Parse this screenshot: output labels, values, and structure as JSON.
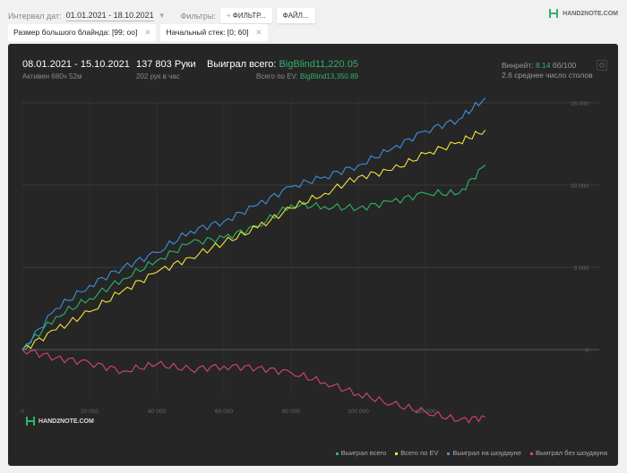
{
  "toolbar": {
    "interval_label": "Интервал дат:",
    "interval_value": "01.01.2021 - 18.10.2021",
    "filters_label": "Фильтры:",
    "filter_button": "ФИЛЬТР...",
    "file_button": "ФАЙЛ..."
  },
  "chips": [
    {
      "label": "Размер большого блайнда: [99; oo]"
    },
    {
      "label": "Начальный стек: [0; 60]"
    }
  ],
  "brand": {
    "text": "HAND2NOTE.COM"
  },
  "stats": {
    "period": "08.01.2021 - 15.10.2021",
    "active": "Активен 680ч 52м",
    "hands": "137 803 Руки",
    "hands_per_hour": "202 рук в час",
    "won_label": "Выиграл всего:",
    "won_value": "BigBlind11,220.05",
    "ev_label": "Всего по EV:",
    "ev_value": "BigBlind13,350.89",
    "winrate_label": "Винрейт:",
    "winrate_value": "8.14",
    "winrate_unit": "бб/100",
    "tables": "2.6 среднее число столов"
  },
  "colors": {
    "green": "#2fb36a",
    "yellow": "#f2e33a",
    "blue": "#3d8fe0",
    "pink": "#d9456f"
  },
  "chart_data": {
    "type": "line",
    "xlabel": "",
    "ylabel": "",
    "xlim": [
      0,
      137803
    ],
    "ylim": [
      -5000,
      15500
    ],
    "x_ticks": [
      "0",
      "20 000",
      "40 000",
      "60 000",
      "80 000",
      "100 000",
      "120 000"
    ],
    "y_ticks": [
      "0",
      "5 000",
      "10 000",
      "15 000"
    ],
    "x": [
      0,
      10000,
      20000,
      30000,
      40000,
      50000,
      60000,
      70000,
      80000,
      90000,
      100000,
      110000,
      120000,
      130000,
      137803
    ],
    "series": [
      {
        "name": "Выиграл всего",
        "color": "#2fb36a",
        "values": [
          0,
          2000,
          3100,
          4300,
          5400,
          6500,
          6800,
          7500,
          8800,
          8700,
          8600,
          9000,
          9500,
          9500,
          11220
        ]
      },
      {
        "name": "Всего по EV",
        "color": "#f2e33a",
        "values": [
          0,
          1200,
          2300,
          3600,
          4700,
          5600,
          6500,
          7400,
          8600,
          9500,
          10500,
          10900,
          11900,
          12600,
          13350
        ]
      },
      {
        "name": "Выиграл на шоудауне",
        "color": "#3d8fe0",
        "values": [
          0,
          2500,
          3900,
          5000,
          5900,
          7200,
          7800,
          8800,
          9900,
          10500,
          11200,
          12200,
          13300,
          14000,
          15300
        ]
      },
      {
        "name": "Выиграл без шоудауна",
        "color": "#d9456f",
        "values": [
          0,
          -500,
          -800,
          -1300,
          -900,
          -1200,
          -1000,
          -1100,
          -1400,
          -2000,
          -2700,
          -3300,
          -3800,
          -4300,
          -4100
        ]
      }
    ]
  }
}
